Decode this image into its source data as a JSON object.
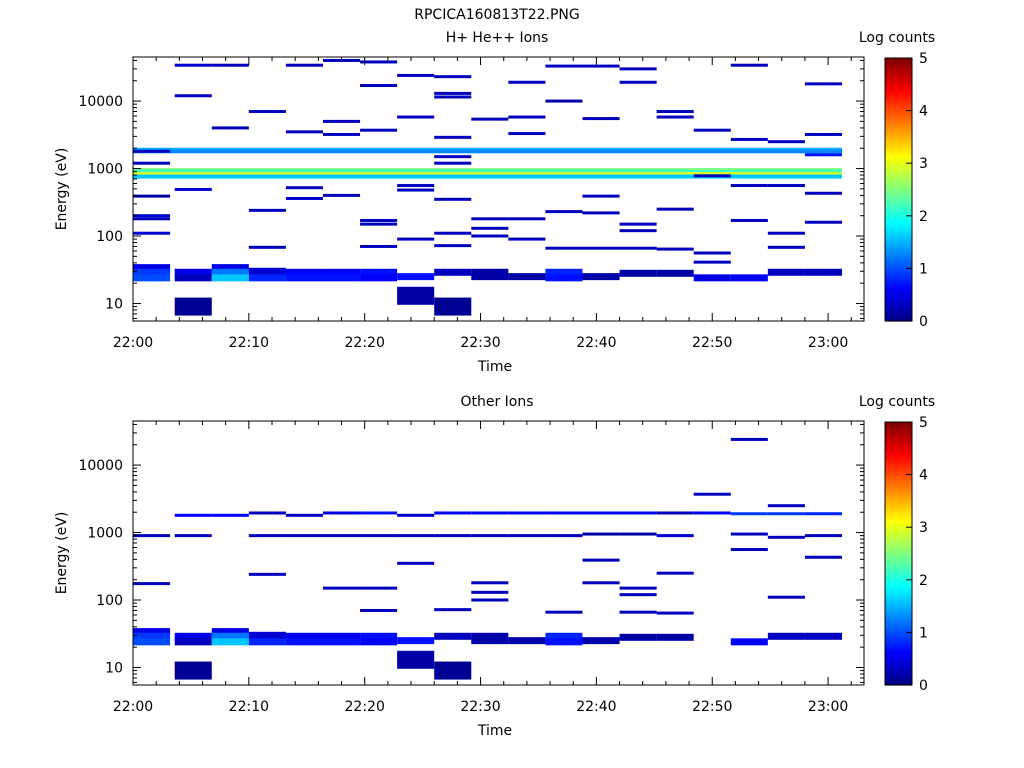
{
  "title": "RPCICA160813T22.PNG",
  "colorbar": {
    "label": "Log counts",
    "ticks": [
      "0",
      "1",
      "2",
      "3",
      "4",
      "5"
    ],
    "colormap": "jet"
  },
  "panels": [
    {
      "title": "H+ He++ Ions",
      "xlabel": "Time",
      "ylabel": "Energy (eV)",
      "xticks": [
        "22:00",
        "22:10",
        "22:20",
        "22:30",
        "22:40",
        "22:50",
        "23:00"
      ],
      "yticks": [
        "10",
        "100",
        "1000",
        "10000"
      ]
    },
    {
      "title": "Other Ions",
      "xlabel": "Time",
      "ylabel": "Energy (eV)",
      "xticks": [
        "22:00",
        "22:10",
        "22:20",
        "22:30",
        "22:40",
        "22:50",
        "23:00"
      ],
      "yticks": [
        "10",
        "100",
        "1000",
        "10000"
      ]
    }
  ],
  "chart_data": [
    {
      "type": "heatmap",
      "title": "H+ He++ Ions",
      "xlabel": "Time",
      "ylabel": "Energy (eV)",
      "x_range": [
        "22:00",
        "23:03"
      ],
      "y_range_eV": [
        5.5,
        45000
      ],
      "y_scale": "log",
      "color_scale": "log counts",
      "color_range": [
        0,
        5
      ],
      "time_bins_start_min": [
        0,
        3.6,
        6.8,
        10,
        13.2,
        16.4,
        19.6,
        22.8,
        26,
        29.2,
        32.4,
        35.6,
        38.8,
        42,
        45.2,
        48.4,
        51.6,
        54.8,
        58
      ],
      "bin_width_min": 3.2,
      "cells": [
        {
          "t": 0,
          "e": 1800,
          "v": 0.3
        },
        {
          "t": 0,
          "e": 1200,
          "v": 0.3
        },
        {
          "t": 0,
          "e": 390,
          "v": 0.2
        },
        {
          "t": 0,
          "e": 200,
          "v": 0.4
        },
        {
          "t": 0,
          "e": 180,
          "v": 0.3
        },
        {
          "t": 0,
          "e": 110,
          "v": 0.4
        },
        {
          "t": 0,
          "e": 34,
          "v": 0.5
        },
        {
          "t": 0,
          "e": 29,
          "v": 0.9
        },
        {
          "t": 0,
          "e": 24,
          "v": 1.0
        },
        {
          "t": 1,
          "e": 34000,
          "v": 0.4
        },
        {
          "t": 1,
          "e": 12000,
          "v": 0.3
        },
        {
          "t": 1,
          "e": 490,
          "v": 0.4
        },
        {
          "t": 1,
          "e": 29,
          "v": 0.5
        },
        {
          "t": 1,
          "e": 24,
          "v": 0.3
        },
        {
          "t": 1,
          "e": 9,
          "v": 0.1
        },
        {
          "t": 2,
          "e": 34000,
          "v": 0.3
        },
        {
          "t": 2,
          "e": 4000,
          "v": 0.3
        },
        {
          "t": 2,
          "e": 34,
          "v": 0.5
        },
        {
          "t": 2,
          "e": 29,
          "v": 1.2
        },
        {
          "t": 2,
          "e": 24,
          "v": 1.6
        },
        {
          "t": 3,
          "e": 7000,
          "v": 0.3
        },
        {
          "t": 3,
          "e": 240,
          "v": 0.3
        },
        {
          "t": 3,
          "e": 68,
          "v": 0.3
        },
        {
          "t": 3,
          "e": 30,
          "v": 0.4
        },
        {
          "t": 3,
          "e": 24,
          "v": 0.8
        },
        {
          "t": 4,
          "e": 34000,
          "v": 0.3
        },
        {
          "t": 4,
          "e": 3500,
          "v": 0.3
        },
        {
          "t": 4,
          "e": 520,
          "v": 0.3
        },
        {
          "t": 4,
          "e": 360,
          "v": 0.4
        },
        {
          "t": 4,
          "e": 29,
          "v": 0.6
        },
        {
          "t": 4,
          "e": 24,
          "v": 0.7
        },
        {
          "t": 5,
          "e": 40000,
          "v": 0.3
        },
        {
          "t": 5,
          "e": 5000,
          "v": 0.3
        },
        {
          "t": 5,
          "e": 3200,
          "v": 0.3
        },
        {
          "t": 5,
          "e": 400,
          "v": 0.3
        },
        {
          "t": 5,
          "e": 29,
          "v": 0.6
        },
        {
          "t": 5,
          "e": 24,
          "v": 0.7
        },
        {
          "t": 6,
          "e": 38000,
          "v": 0.3
        },
        {
          "t": 6,
          "e": 17000,
          "v": 0.3
        },
        {
          "t": 6,
          "e": 3700,
          "v": 0.3
        },
        {
          "t": 6,
          "e": 170,
          "v": 0.3
        },
        {
          "t": 6,
          "e": 150,
          "v": 0.3
        },
        {
          "t": 6,
          "e": 70,
          "v": 0.3
        },
        {
          "t": 6,
          "e": 29,
          "v": 0.7
        },
        {
          "t": 6,
          "e": 24,
          "v": 0.6
        },
        {
          "t": 7,
          "e": 24000,
          "v": 0.3
        },
        {
          "t": 7,
          "e": 5800,
          "v": 0.3
        },
        {
          "t": 7,
          "e": 560,
          "v": 0.3
        },
        {
          "t": 7,
          "e": 480,
          "v": 0.3
        },
        {
          "t": 7,
          "e": 90,
          "v": 0.3
        },
        {
          "t": 7,
          "e": 25,
          "v": 0.7
        },
        {
          "t": 7,
          "e": 13,
          "v": 0.2
        },
        {
          "t": 8,
          "e": 23000,
          "v": 0.3
        },
        {
          "t": 8,
          "e": 13000,
          "v": 0.3
        },
        {
          "t": 8,
          "e": 11500,
          "v": 0.3
        },
        {
          "t": 8,
          "e": 2900,
          "v": 0.3
        },
        {
          "t": 8,
          "e": 1500,
          "v": 0.3
        },
        {
          "t": 8,
          "e": 1200,
          "v": 0.3
        },
        {
          "t": 8,
          "e": 350,
          "v": 0.3
        },
        {
          "t": 8,
          "e": 110,
          "v": 0.3
        },
        {
          "t": 8,
          "e": 72,
          "v": 0.3
        },
        {
          "t": 8,
          "e": 29,
          "v": 0.3
        },
        {
          "t": 8,
          "e": 9,
          "v": 0.1
        },
        {
          "t": 9,
          "e": 5400,
          "v": 0.3
        },
        {
          "t": 9,
          "e": 180,
          "v": 0.3
        },
        {
          "t": 9,
          "e": 130,
          "v": 0.3
        },
        {
          "t": 9,
          "e": 100,
          "v": 0.3
        },
        {
          "t": 9,
          "e": 29,
          "v": 0.2
        },
        {
          "t": 9,
          "e": 25,
          "v": 0.2
        },
        {
          "t": 10,
          "e": 19000,
          "v": 0.3
        },
        {
          "t": 10,
          "e": 5800,
          "v": 0.3
        },
        {
          "t": 10,
          "e": 3300,
          "v": 0.3
        },
        {
          "t": 10,
          "e": 180,
          "v": 0.3
        },
        {
          "t": 10,
          "e": 90,
          "v": 0.3
        },
        {
          "t": 10,
          "e": 25,
          "v": 0.2
        },
        {
          "t": 11,
          "e": 33000,
          "v": 0.3
        },
        {
          "t": 11,
          "e": 10000,
          "v": 0.2
        },
        {
          "t": 11,
          "e": 230,
          "v": 0.3
        },
        {
          "t": 11,
          "e": 66,
          "v": 0.3
        },
        {
          "t": 11,
          "e": 29,
          "v": 0.8
        },
        {
          "t": 11,
          "e": 24,
          "v": 0.7
        },
        {
          "t": 12,
          "e": 33000,
          "v": 0.3
        },
        {
          "t": 12,
          "e": 5500,
          "v": 0.3
        },
        {
          "t": 12,
          "e": 390,
          "v": 0.3
        },
        {
          "t": 12,
          "e": 220,
          "v": 0.3
        },
        {
          "t": 12,
          "e": 66,
          "v": 0.3
        },
        {
          "t": 12,
          "e": 25,
          "v": 0.2
        },
        {
          "t": 13,
          "e": 30000,
          "v": 0.3
        },
        {
          "t": 13,
          "e": 19000,
          "v": 0.3
        },
        {
          "t": 13,
          "e": 150,
          "v": 0.3
        },
        {
          "t": 13,
          "e": 120,
          "v": 0.3
        },
        {
          "t": 13,
          "e": 66,
          "v": 0.3
        },
        {
          "t": 13,
          "e": 28,
          "v": 0.2
        },
        {
          "t": 14,
          "e": 7000,
          "v": 0.3
        },
        {
          "t": 14,
          "e": 5800,
          "v": 0.3
        },
        {
          "t": 14,
          "e": 250,
          "v": 0.3
        },
        {
          "t": 14,
          "e": 64,
          "v": 0.3
        },
        {
          "t": 14,
          "e": 28,
          "v": 0.2
        },
        {
          "t": 15,
          "e": 3700,
          "v": 0.3
        },
        {
          "t": 15,
          "e": 780,
          "v": 0.3
        },
        {
          "t": 15,
          "e": 56,
          "v": 0.3
        },
        {
          "t": 15,
          "e": 41,
          "v": 0.3
        },
        {
          "t": 15,
          "e": 24,
          "v": 0.5
        },
        {
          "t": 16,
          "e": 34000,
          "v": 0.3
        },
        {
          "t": 16,
          "e": 2700,
          "v": 0.3
        },
        {
          "t": 16,
          "e": 560,
          "v": 0.3
        },
        {
          "t": 16,
          "e": 170,
          "v": 0.3
        },
        {
          "t": 16,
          "e": 24,
          "v": 0.6
        },
        {
          "t": 17,
          "e": 2500,
          "v": 0.3
        },
        {
          "t": 17,
          "e": 560,
          "v": 0.3
        },
        {
          "t": 17,
          "e": 110,
          "v": 0.3
        },
        {
          "t": 17,
          "e": 68,
          "v": 0.3
        },
        {
          "t": 17,
          "e": 29,
          "v": 0.3
        },
        {
          "t": 18,
          "e": 18000,
          "v": 0.3
        },
        {
          "t": 18,
          "e": 3200,
          "v": 0.3
        },
        {
          "t": 18,
          "e": 1600,
          "v": 0.7
        },
        {
          "t": 18,
          "e": 430,
          "v": 0.3
        },
        {
          "t": 18,
          "e": 160,
          "v": 0.3
        },
        {
          "t": 18,
          "e": 29,
          "v": 0.3
        }
      ],
      "bands": [
        {
          "e": 1900,
          "v": 1.5
        },
        {
          "e": 1800,
          "v": 1.3
        },
        {
          "e": 950,
          "v": 2.5
        },
        {
          "e": 900,
          "v": 2.2
        },
        {
          "e": 830,
          "v": 2.9
        },
        {
          "e": 760,
          "v": 1.6
        }
      ]
    },
    {
      "type": "heatmap",
      "title": "Other Ions",
      "xlabel": "Time",
      "ylabel": "Energy (eV)",
      "x_range": [
        "22:00",
        "23:03"
      ],
      "y_range_eV": [
        5.5,
        45000
      ],
      "y_scale": "log",
      "color_scale": "log counts",
      "color_range": [
        0,
        5
      ],
      "time_bins_start_min": [
        0,
        3.6,
        6.8,
        10,
        13.2,
        16.4,
        19.6,
        22.8,
        26,
        29.2,
        32.4,
        35.6,
        38.8,
        42,
        45.2,
        48.4,
        51.6,
        54.8,
        58
      ],
      "bin_width_min": 3.2,
      "cells": [
        {
          "t": 0,
          "e": 900,
          "v": 0.3
        },
        {
          "t": 0,
          "e": 175,
          "v": 0.3
        },
        {
          "t": 0,
          "e": 34,
          "v": 0.5
        },
        {
          "t": 0,
          "e": 29,
          "v": 0.9
        },
        {
          "t": 0,
          "e": 24,
          "v": 1.0
        },
        {
          "t": 1,
          "e": 1800,
          "v": 0.6
        },
        {
          "t": 1,
          "e": 900,
          "v": 0.3
        },
        {
          "t": 1,
          "e": 29,
          "v": 0.5
        },
        {
          "t": 1,
          "e": 24,
          "v": 0.3
        },
        {
          "t": 1,
          "e": 9,
          "v": 0.1
        },
        {
          "t": 2,
          "e": 1800,
          "v": 0.6
        },
        {
          "t": 2,
          "e": 34,
          "v": 0.5
        },
        {
          "t": 2,
          "e": 29,
          "v": 1.2
        },
        {
          "t": 2,
          "e": 24,
          "v": 1.6
        },
        {
          "t": 3,
          "e": 1950,
          "v": 0.3
        },
        {
          "t": 3,
          "e": 900,
          "v": 0.3
        },
        {
          "t": 3,
          "e": 240,
          "v": 0.3
        },
        {
          "t": 3,
          "e": 30,
          "v": 0.4
        },
        {
          "t": 3,
          "e": 24,
          "v": 0.8
        },
        {
          "t": 4,
          "e": 1800,
          "v": 0.3
        },
        {
          "t": 4,
          "e": 900,
          "v": 0.3
        },
        {
          "t": 4,
          "e": 29,
          "v": 0.6
        },
        {
          "t": 4,
          "e": 24,
          "v": 0.7
        },
        {
          "t": 5,
          "e": 1950,
          "v": 0.5
        },
        {
          "t": 5,
          "e": 900,
          "v": 0.3
        },
        {
          "t": 5,
          "e": 150,
          "v": 0.3
        },
        {
          "t": 5,
          "e": 29,
          "v": 0.6
        },
        {
          "t": 5,
          "e": 24,
          "v": 0.7
        },
        {
          "t": 6,
          "e": 1950,
          "v": 0.7
        },
        {
          "t": 6,
          "e": 900,
          "v": 0.3
        },
        {
          "t": 6,
          "e": 150,
          "v": 0.3
        },
        {
          "t": 6,
          "e": 70,
          "v": 0.3
        },
        {
          "t": 6,
          "e": 29,
          "v": 0.7
        },
        {
          "t": 6,
          "e": 24,
          "v": 0.6
        },
        {
          "t": 7,
          "e": 1800,
          "v": 0.4
        },
        {
          "t": 7,
          "e": 900,
          "v": 0.3
        },
        {
          "t": 7,
          "e": 350,
          "v": 0.3
        },
        {
          "t": 7,
          "e": 25,
          "v": 0.7
        },
        {
          "t": 7,
          "e": 13,
          "v": 0.2
        },
        {
          "t": 8,
          "e": 1950,
          "v": 0.6
        },
        {
          "t": 8,
          "e": 900,
          "v": 0.3
        },
        {
          "t": 8,
          "e": 72,
          "v": 0.3
        },
        {
          "t": 8,
          "e": 29,
          "v": 0.3
        },
        {
          "t": 8,
          "e": 9,
          "v": 0.1
        },
        {
          "t": 9,
          "e": 1950,
          "v": 0.6
        },
        {
          "t": 9,
          "e": 900,
          "v": 0.3
        },
        {
          "t": 9,
          "e": 180,
          "v": 0.3
        },
        {
          "t": 9,
          "e": 130,
          "v": 0.3
        },
        {
          "t": 9,
          "e": 100,
          "v": 0.3
        },
        {
          "t": 9,
          "e": 29,
          "v": 0.2
        },
        {
          "t": 9,
          "e": 25,
          "v": 0.2
        },
        {
          "t": 10,
          "e": 1950,
          "v": 0.6
        },
        {
          "t": 10,
          "e": 900,
          "v": 0.3
        },
        {
          "t": 10,
          "e": 25,
          "v": 0.2
        },
        {
          "t": 11,
          "e": 1950,
          "v": 0.6
        },
        {
          "t": 11,
          "e": 900,
          "v": 0.3
        },
        {
          "t": 11,
          "e": 66,
          "v": 0.3
        },
        {
          "t": 11,
          "e": 29,
          "v": 0.8
        },
        {
          "t": 11,
          "e": 24,
          "v": 0.7
        },
        {
          "t": 12,
          "e": 1950,
          "v": 0.6
        },
        {
          "t": 12,
          "e": 950,
          "v": 0.2
        },
        {
          "t": 12,
          "e": 390,
          "v": 0.3
        },
        {
          "t": 12,
          "e": 180,
          "v": 0.3
        },
        {
          "t": 12,
          "e": 25,
          "v": 0.2
        },
        {
          "t": 13,
          "e": 1950,
          "v": 0.6
        },
        {
          "t": 13,
          "e": 950,
          "v": 0.2
        },
        {
          "t": 13,
          "e": 150,
          "v": 0.3
        },
        {
          "t": 13,
          "e": 120,
          "v": 0.3
        },
        {
          "t": 13,
          "e": 66,
          "v": 0.3
        },
        {
          "t": 13,
          "e": 28,
          "v": 0.2
        },
        {
          "t": 14,
          "e": 1950,
          "v": 0.3
        },
        {
          "t": 14,
          "e": 900,
          "v": 0.4
        },
        {
          "t": 14,
          "e": 250,
          "v": 0.3
        },
        {
          "t": 14,
          "e": 64,
          "v": 0.3
        },
        {
          "t": 14,
          "e": 28,
          "v": 0.2
        },
        {
          "t": 15,
          "e": 3700,
          "v": 0.3
        },
        {
          "t": 15,
          "e": 1950,
          "v": 0.6
        },
        {
          "t": 16,
          "e": 24000,
          "v": 0.3
        },
        {
          "t": 16,
          "e": 1900,
          "v": 0.9
        },
        {
          "t": 16,
          "e": 950,
          "v": 0.3
        },
        {
          "t": 16,
          "e": 560,
          "v": 0.3
        },
        {
          "t": 16,
          "e": 24,
          "v": 0.6
        },
        {
          "t": 17,
          "e": 2500,
          "v": 0.3
        },
        {
          "t": 17,
          "e": 1900,
          "v": 0.9
        },
        {
          "t": 17,
          "e": 850,
          "v": 0.3
        },
        {
          "t": 17,
          "e": 110,
          "v": 0.3
        },
        {
          "t": 17,
          "e": 29,
          "v": 0.3
        },
        {
          "t": 18,
          "e": 1900,
          "v": 0.8
        },
        {
          "t": 18,
          "e": 900,
          "v": 0.3
        },
        {
          "t": 18,
          "e": 430,
          "v": 0.3
        },
        {
          "t": 18,
          "e": 29,
          "v": 0.3
        }
      ]
    }
  ]
}
